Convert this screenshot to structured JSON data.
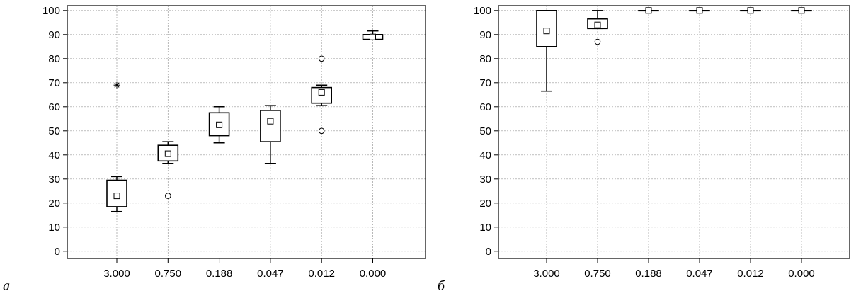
{
  "chart_data": [
    {
      "type": "box",
      "panel_label": "а",
      "categories": [
        "3.000",
        "0.750",
        "0.188",
        "0.047",
        "0.012",
        "0.000"
      ],
      "ylim": [
        -3,
        102
      ],
      "yticks": [
        0,
        10,
        20,
        30,
        40,
        50,
        60,
        70,
        80,
        90,
        100
      ],
      "grid": true,
      "boxes": [
        {
          "whisker_low": 16.5,
          "q1": 18.5,
          "mean": 23,
          "q3": 29.5,
          "whisker_high": 31,
          "outliers": [],
          "extremes": [
            69
          ]
        },
        {
          "whisker_low": 36.5,
          "q1": 37.5,
          "mean": 40.5,
          "q3": 44,
          "whisker_high": 45.5,
          "outliers": [
            23
          ],
          "extremes": []
        },
        {
          "whisker_low": 45,
          "q1": 48,
          "mean": 52.5,
          "q3": 57.5,
          "whisker_high": 60,
          "outliers": [],
          "extremes": []
        },
        {
          "whisker_low": 36.5,
          "q1": 45.5,
          "mean": 54,
          "q3": 58.5,
          "whisker_high": 60.5,
          "outliers": [],
          "extremes": []
        },
        {
          "whisker_low": 60.5,
          "q1": 61.5,
          "mean": 66,
          "q3": 68,
          "whisker_high": 69,
          "outliers": [
            80,
            50
          ],
          "extremes": []
        },
        {
          "whisker_low": 88,
          "q1": 88,
          "mean": 89,
          "q3": 90,
          "whisker_high": 91.5,
          "outliers": [],
          "extremes": []
        }
      ]
    },
    {
      "type": "box",
      "panel_label": "б",
      "categories": [
        "3.000",
        "0.750",
        "0.188",
        "0.047",
        "0.012",
        "0.000"
      ],
      "ylim": [
        -3,
        102
      ],
      "yticks": [
        0,
        10,
        20,
        30,
        40,
        50,
        60,
        70,
        80,
        90,
        100
      ],
      "grid": true,
      "boxes": [
        {
          "whisker_low": 66.5,
          "q1": 85,
          "mean": 91.5,
          "q3": 100,
          "whisker_high": 100,
          "outliers": [],
          "extremes": []
        },
        {
          "whisker_low": 92.5,
          "q1": 92.5,
          "mean": 94,
          "q3": 96.5,
          "whisker_high": 100,
          "outliers": [
            87
          ],
          "extremes": []
        },
        {
          "whisker_low": 100,
          "q1": 100,
          "mean": 100,
          "q3": 100,
          "whisker_high": 100,
          "outliers": [],
          "extremes": []
        },
        {
          "whisker_low": 100,
          "q1": 100,
          "mean": 100,
          "q3": 100,
          "whisker_high": 100,
          "outliers": [],
          "extremes": []
        },
        {
          "whisker_low": 100,
          "q1": 100,
          "mean": 100,
          "q3": 100,
          "whisker_high": 100,
          "outliers": [],
          "extremes": []
        },
        {
          "whisker_low": 100,
          "q1": 100,
          "mean": 100,
          "q3": 100,
          "whisker_high": 100,
          "outliers": [],
          "extremes": []
        }
      ]
    }
  ]
}
